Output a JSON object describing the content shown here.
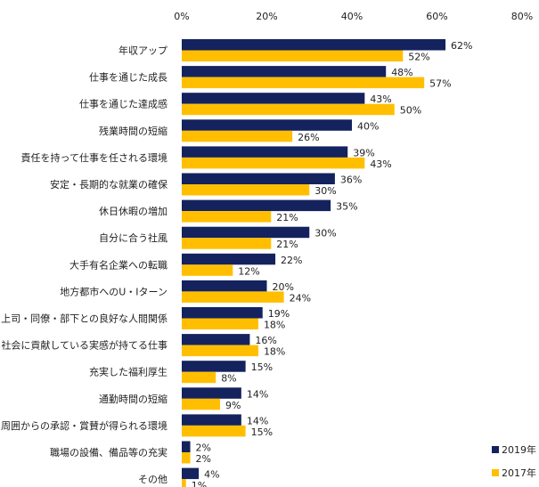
{
  "chart_data": {
    "type": "bar",
    "orientation": "horizontal",
    "title": "",
    "xlabel": "",
    "ylabel": "",
    "xlim": [
      0,
      80
    ],
    "x_ticks": [
      "0%",
      "20%",
      "40%",
      "60%",
      "80%"
    ],
    "grid": false,
    "legend_position": "bottom-right",
    "categories": [
      "年収アップ",
      "仕事を通じた成長",
      "仕事を通じた達成感",
      "残業時間の短縮",
      "責任を持って仕事を任される環境",
      "安定・長期的な就業の確保",
      "休日休暇の増加",
      "自分に合う社風",
      "大手有名企業への転職",
      "地方都市へのU・Iターン",
      "上司・同僚・部下との良好な人間関係",
      "社会に貢献している実感が持てる仕事",
      "充実した福利厚生",
      "通勤時間の短縮",
      "周囲からの承認・賞賛が得られる環境",
      "職場の設備、備品等の充実",
      "その他"
    ],
    "series": [
      {
        "name": "2019年",
        "color": "#14225e",
        "values": [
          62,
          48,
          43,
          40,
          39,
          36,
          35,
          30,
          22,
          20,
          19,
          16,
          15,
          14,
          14,
          2,
          4
        ]
      },
      {
        "name": "2017年",
        "color": "#ffbf00",
        "values": [
          52,
          57,
          50,
          26,
          43,
          30,
          21,
          21,
          12,
          24,
          18,
          18,
          8,
          9,
          15,
          2,
          1
        ]
      }
    ],
    "value_suffix": "%"
  }
}
